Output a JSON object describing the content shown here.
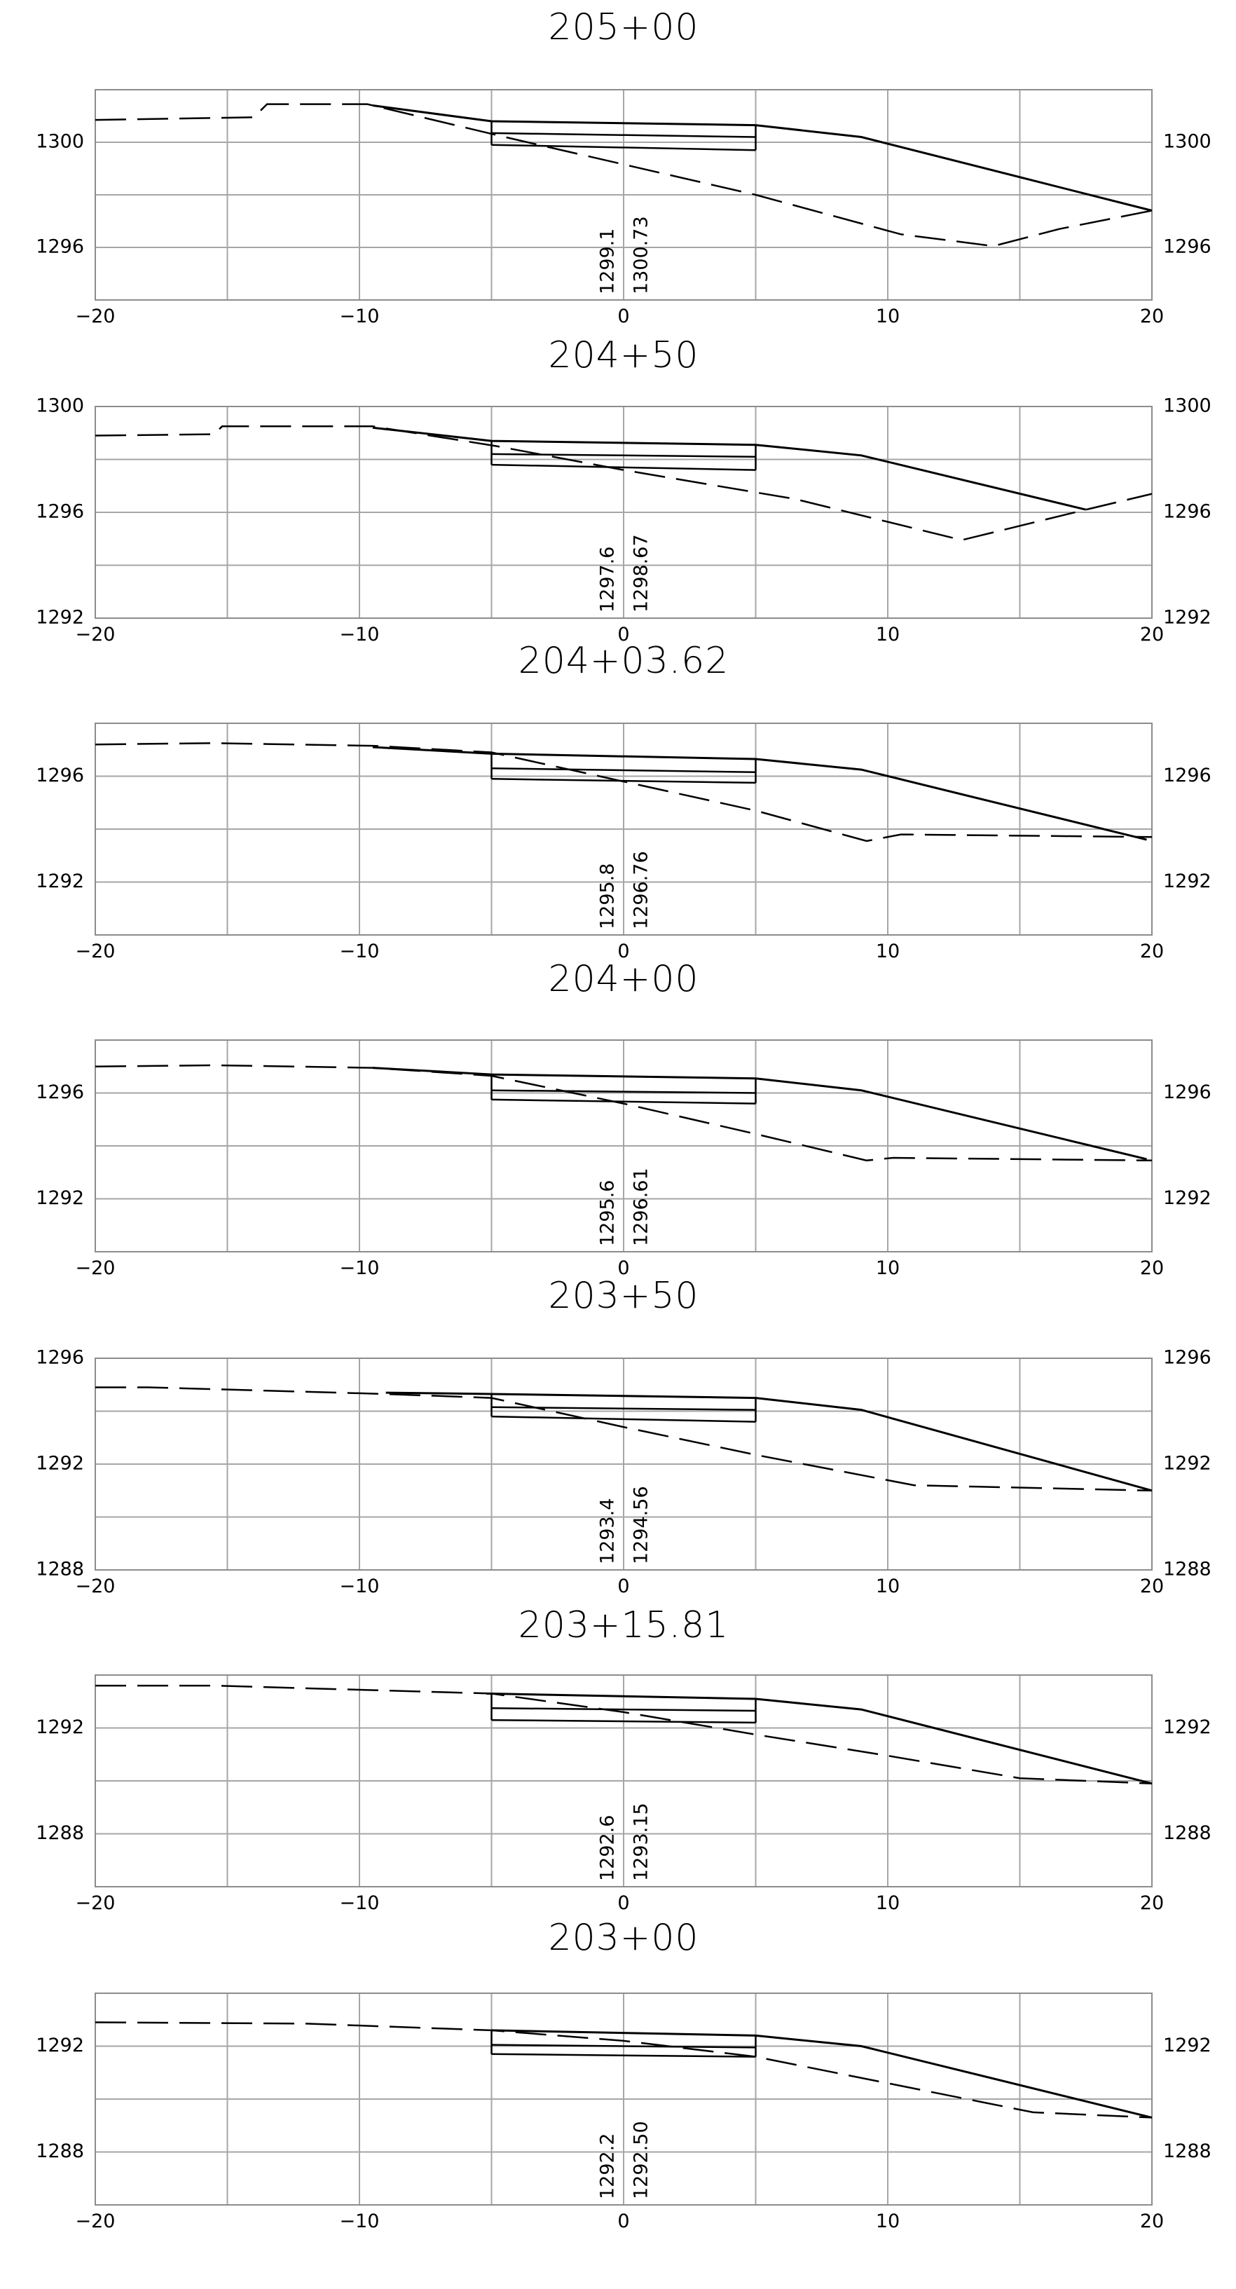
{
  "drawing": {
    "x_range": [
      -20,
      20
    ],
    "x_ticks": [
      -20,
      -10,
      0,
      10,
      20
    ],
    "x_grid": [
      -20,
      -15,
      -10,
      -5,
      0,
      5,
      10,
      15,
      20
    ],
    "pavement_half_width": 5,
    "lines": {
      "design_surface": "solid",
      "pavement_layers": "solid",
      "existing_ground": "dashed"
    },
    "colors": {
      "line": "#000000",
      "grid": "#a6a6a6",
      "frame": "#8c8c8c"
    }
  },
  "sections": [
    {
      "station": "205+00",
      "y_range": [
        1294,
        1302
      ],
      "y_labels": [
        "1300",
        "1296"
      ],
      "y_label_values": [
        1300,
        1296
      ],
      "elev_labels": [
        "1299.1",
        "1300.73"
      ],
      "design": [
        [
          -9.5,
          1301.4
        ],
        [
          -5,
          1300.8
        ],
        [
          5,
          1300.65
        ],
        [
          9,
          1300.2
        ],
        [
          20,
          1297.4
        ]
      ],
      "layers": [
        [
          [
            -5,
            1300.35
          ],
          [
            5,
            1300.2
          ]
        ],
        [
          [
            -5,
            1299.9
          ],
          [
            5,
            1299.7
          ]
        ]
      ],
      "ground": [
        [
          -20,
          1300.85
        ],
        [
          -14,
          1300.95
        ],
        [
          -13.5,
          1301.45
        ],
        [
          -9.7,
          1301.45
        ],
        [
          -4.5,
          1300.2
        ],
        [
          5,
          1298.0
        ],
        [
          10.5,
          1296.5
        ],
        [
          14,
          1296.05
        ],
        [
          16.5,
          1296.7
        ],
        [
          20,
          1297.4
        ]
      ]
    },
    {
      "station": "204+50",
      "y_range": [
        1292,
        1300
      ],
      "y_labels": [
        "1300",
        "1296",
        "1292"
      ],
      "y_label_values": [
        1300,
        1296,
        1292
      ],
      "elev_labels": [
        "1297.6",
        "1298.67"
      ],
      "design": [
        [
          -9.5,
          1299.2
        ],
        [
          -5,
          1298.7
        ],
        [
          5,
          1298.55
        ],
        [
          9,
          1298.15
        ],
        [
          17.5,
          1296.1
        ]
      ],
      "layers": [
        [
          [
            -5,
            1298.2
          ],
          [
            5,
            1298.1
          ]
        ],
        [
          [
            -5,
            1297.8
          ],
          [
            5,
            1297.6
          ]
        ]
      ],
      "ground": [
        [
          -20,
          1298.9
        ],
        [
          -15.5,
          1298.95
        ],
        [
          -15.2,
          1299.25
        ],
        [
          -9.5,
          1299.25
        ],
        [
          -4.8,
          1298.5
        ],
        [
          0,
          1297.6
        ],
        [
          6.5,
          1296.5
        ],
        [
          12.8,
          1294.95
        ],
        [
          17.5,
          1296.1
        ],
        [
          20,
          1296.7
        ]
      ]
    },
    {
      "station": "204+03.62",
      "y_range": [
        1290,
        1298
      ],
      "y_labels": [
        "1296",
        "1292"
      ],
      "y_label_values": [
        1296,
        1292
      ],
      "elev_labels": [
        "1295.8",
        "1296.76"
      ],
      "design": [
        [
          -9.5,
          1297.1
        ],
        [
          -5,
          1296.85
        ],
        [
          5,
          1296.65
        ],
        [
          9,
          1296.25
        ],
        [
          19.8,
          1293.6
        ]
      ],
      "layers": [
        [
          [
            -5,
            1296.3
          ],
          [
            5,
            1296.15
          ]
        ],
        [
          [
            -5,
            1295.9
          ],
          [
            5,
            1295.75
          ]
        ]
      ],
      "ground": [
        [
          -20,
          1297.2
        ],
        [
          -15.5,
          1297.25
        ],
        [
          -9.5,
          1297.15
        ],
        [
          -5,
          1296.9
        ],
        [
          0,
          1295.8
        ],
        [
          5,
          1294.7
        ],
        [
          9.2,
          1293.55
        ],
        [
          10.5,
          1293.8
        ],
        [
          20,
          1293.7
        ]
      ]
    },
    {
      "station": "204+00",
      "y_range": [
        1290,
        1298
      ],
      "y_labels": [
        "1296",
        "1292"
      ],
      "y_label_values": [
        1296,
        1292
      ],
      "elev_labels": [
        "1295.6",
        "1296.61"
      ],
      "design": [
        [
          -9.5,
          1296.95
        ],
        [
          -5,
          1296.7
        ],
        [
          5,
          1296.55
        ],
        [
          9,
          1296.1
        ],
        [
          19.8,
          1293.5
        ]
      ],
      "layers": [
        [
          [
            -5,
            1296.1
          ],
          [
            5,
            1296.0
          ]
        ],
        [
          [
            -5,
            1295.75
          ],
          [
            5,
            1295.6
          ]
        ]
      ],
      "ground": [
        [
          -20,
          1297.0
        ],
        [
          -15.5,
          1297.05
        ],
        [
          -9.5,
          1296.95
        ],
        [
          -5,
          1296.65
        ],
        [
          0,
          1295.6
        ],
        [
          5,
          1294.45
        ],
        [
          9.2,
          1293.45
        ],
        [
          10.2,
          1293.55
        ],
        [
          20,
          1293.45
        ]
      ]
    },
    {
      "station": "203+50",
      "y_range": [
        1288,
        1296
      ],
      "y_labels": [
        "1296",
        "1292",
        "1288"
      ],
      "y_label_values": [
        1296,
        1292,
        1288
      ],
      "elev_labels": [
        "1293.4",
        "1294.56"
      ],
      "design": [
        [
          -9,
          1294.7
        ],
        [
          -5,
          1294.65
        ],
        [
          5,
          1294.5
        ],
        [
          9,
          1294.05
        ],
        [
          20,
          1291.0
        ]
      ],
      "layers": [
        [
          [
            -5,
            1294.15
          ],
          [
            5,
            1294.05
          ]
        ],
        [
          [
            -5,
            1293.8
          ],
          [
            5,
            1293.6
          ]
        ]
      ],
      "ground": [
        [
          -20,
          1294.9
        ],
        [
          -18,
          1294.9
        ],
        [
          -9,
          1294.65
        ],
        [
          -5,
          1294.5
        ],
        [
          0,
          1293.4
        ],
        [
          5,
          1292.35
        ],
        [
          11,
          1291.2
        ],
        [
          20,
          1291.0
        ]
      ]
    },
    {
      "station": "203+15.81",
      "y_range": [
        1286,
        1294
      ],
      "y_labels": [
        "1292",
        "1288"
      ],
      "y_label_values": [
        1292,
        1288
      ],
      "elev_labels": [
        "1292.6",
        "1293.15"
      ],
      "design": [
        [
          -5.2,
          1293.3
        ],
        [
          5,
          1293.1
        ],
        [
          9,
          1292.7
        ],
        [
          20,
          1289.9
        ]
      ],
      "layers": [
        [
          [
            -5,
            1292.75
          ],
          [
            5,
            1292.65
          ]
        ],
        [
          [
            -5,
            1292.3
          ],
          [
            5,
            1292.2
          ]
        ]
      ],
      "ground": [
        [
          -20,
          1293.6
        ],
        [
          -15.5,
          1293.6
        ],
        [
          -5,
          1293.3
        ],
        [
          0,
          1292.6
        ],
        [
          5,
          1291.75
        ],
        [
          10,
          1290.95
        ],
        [
          15,
          1290.1
        ],
        [
          20,
          1289.9
        ]
      ]
    },
    {
      "station": "203+00",
      "y_range": [
        1286,
        1294
      ],
      "y_labels": [
        "1292",
        "1288"
      ],
      "y_label_values": [
        1292,
        1288
      ],
      "elev_labels": [
        "1292.2",
        "1292.50"
      ],
      "design": [
        [
          -5,
          1292.6
        ],
        [
          5,
          1292.4
        ],
        [
          9,
          1292.0
        ],
        [
          20,
          1289.3
        ]
      ],
      "layers": [
        [
          [
            -5,
            1292.05
          ],
          [
            5,
            1291.95
          ]
        ],
        [
          [
            -5,
            1291.7
          ],
          [
            5,
            1291.6
          ]
        ]
      ],
      "ground": [
        [
          -20,
          1292.9
        ],
        [
          -12,
          1292.85
        ],
        [
          -5,
          1292.6
        ],
        [
          0,
          1292.2
        ],
        [
          5,
          1291.6
        ],
        [
          10,
          1290.6
        ],
        [
          15.5,
          1289.5
        ],
        [
          20,
          1289.3
        ]
      ]
    }
  ]
}
